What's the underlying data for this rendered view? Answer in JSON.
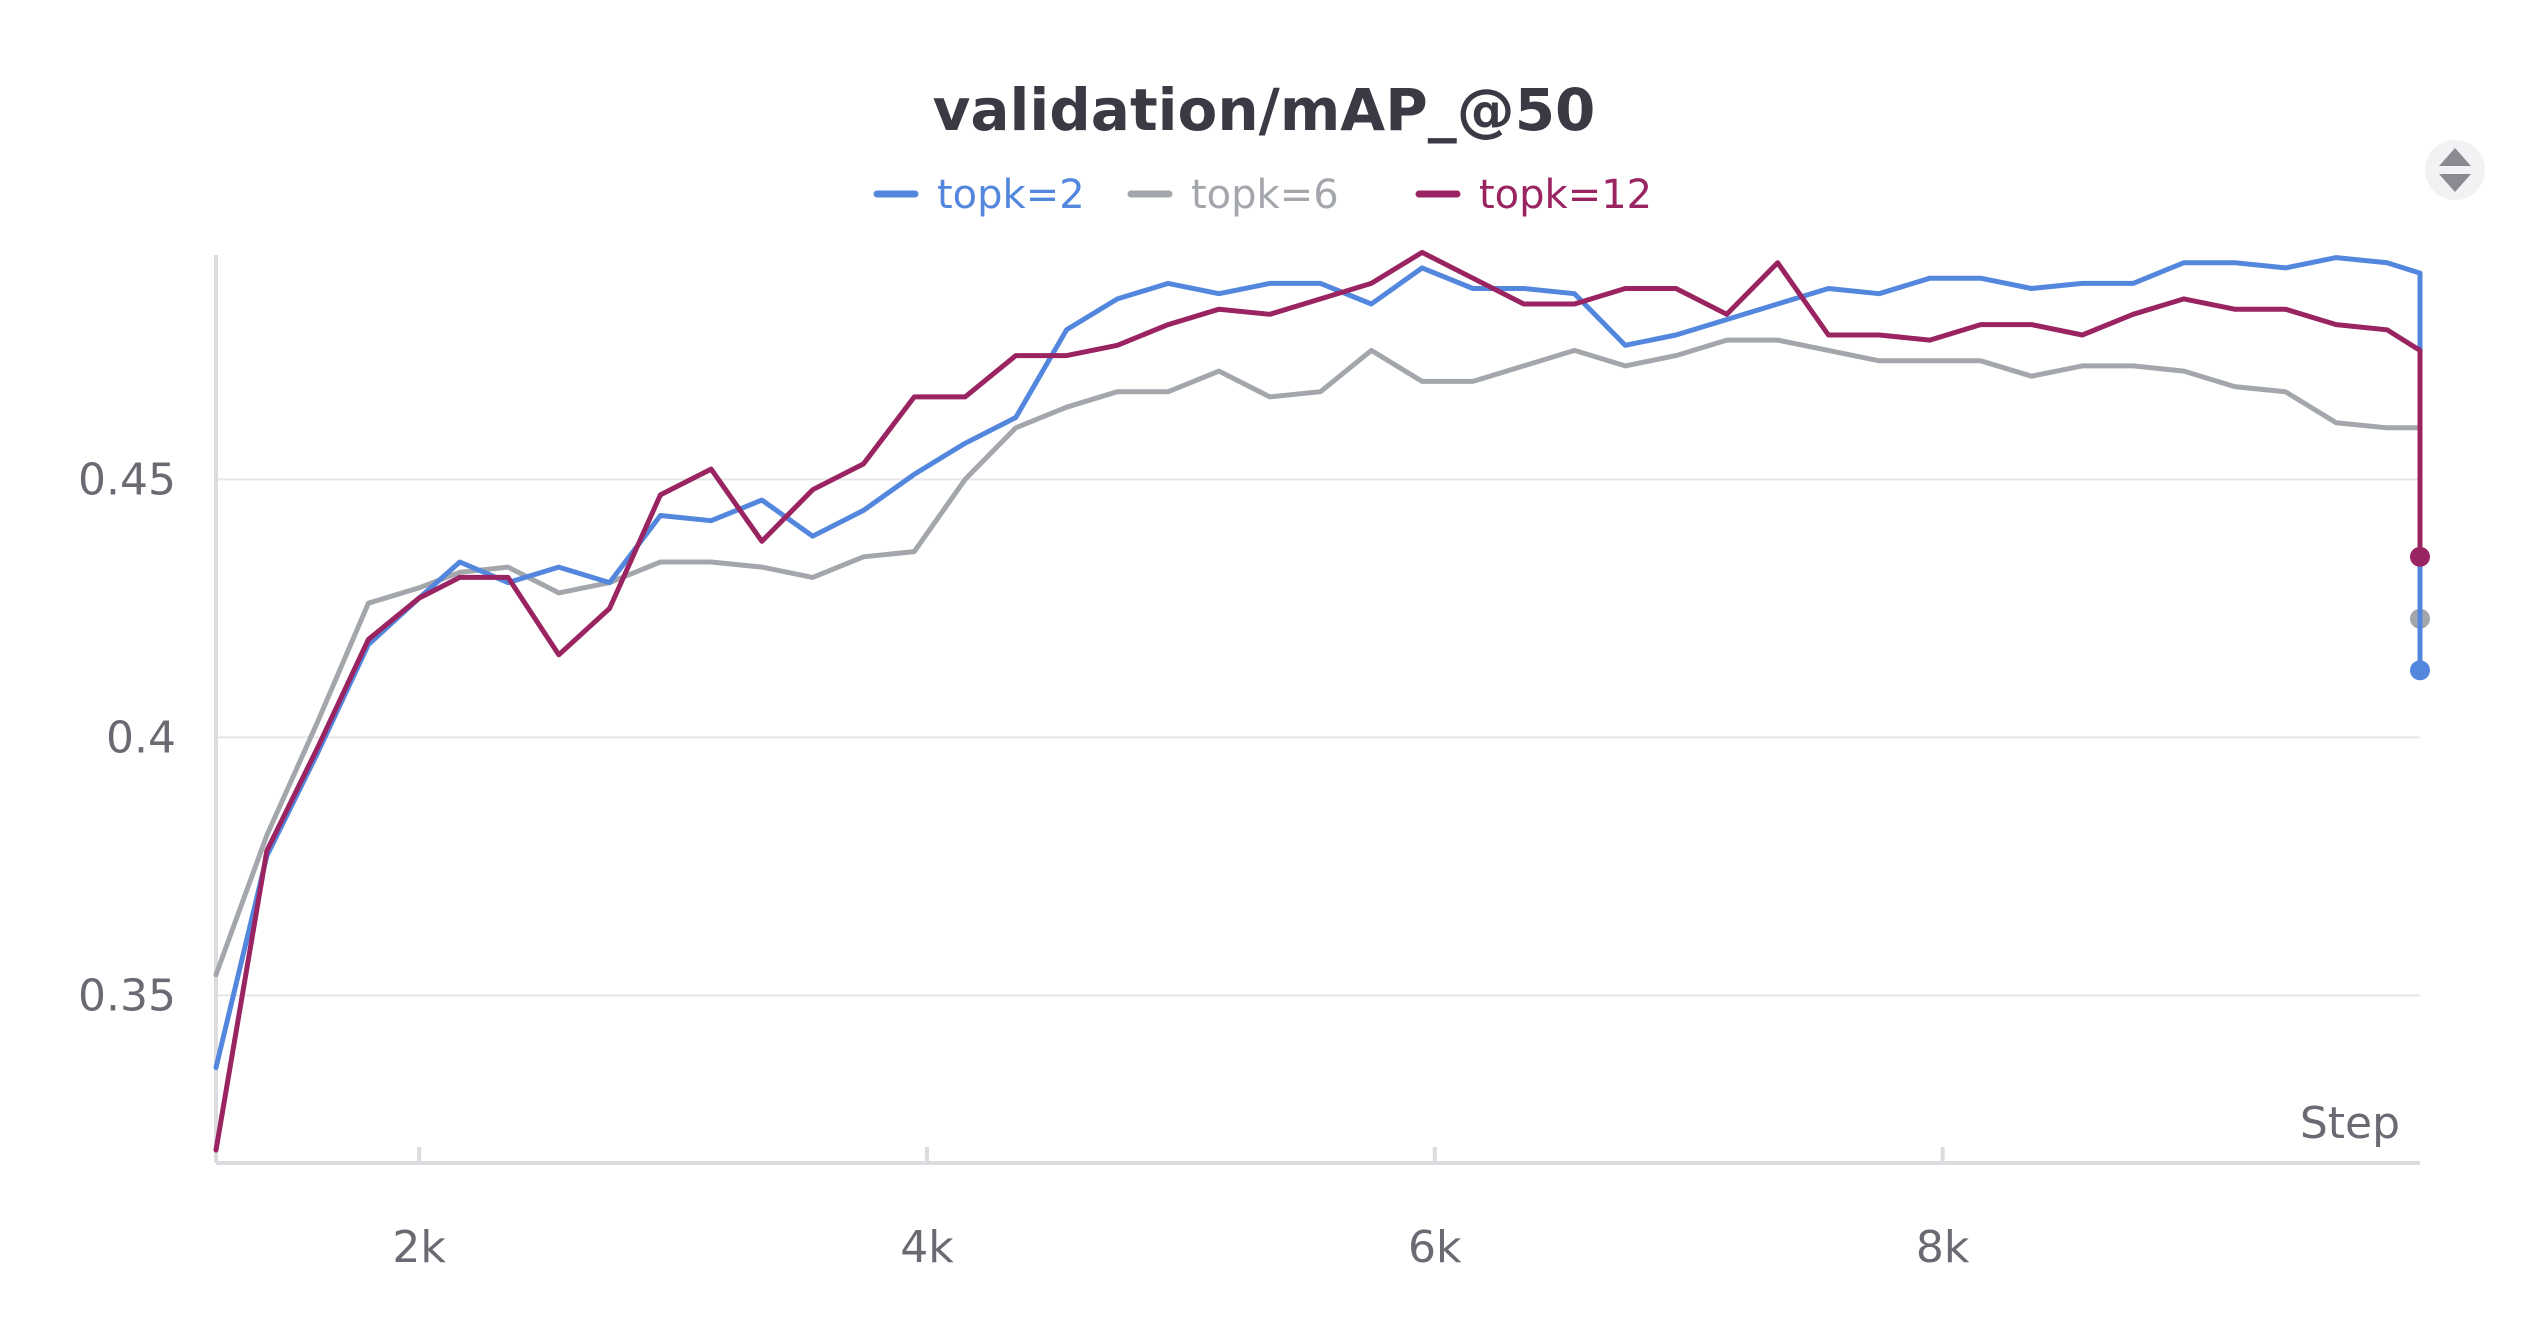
{
  "chart_data": {
    "type": "line",
    "title": "validation/mAP_@50",
    "xlabel": "Step",
    "ylabel": "",
    "xlim": [
      1200,
      9880
    ],
    "ylim": [
      0.3175,
      0.4935
    ],
    "x_ticks": [
      2000,
      4000,
      6000,
      8000
    ],
    "x_tick_labels": [
      "2k",
      "4k",
      "6k",
      "8k"
    ],
    "y_ticks": [
      0.35,
      0.4,
      0.45
    ],
    "y_tick_labels": [
      "0.35",
      "0.4",
      "0.45"
    ],
    "grid": "horizontal",
    "legend_position": "top-center",
    "series": [
      {
        "name": "topk=2",
        "color": "#5387dd",
        "x": [
          1200,
          1400,
          1600,
          1800,
          2000,
          2160,
          2350,
          2550,
          2750,
          2950,
          3150,
          3350,
          3550,
          3750,
          3950,
          4150,
          4350,
          4550,
          4750,
          4950,
          5150,
          5350,
          5550,
          5750,
          5950,
          6150,
          6350,
          6550,
          6750,
          6950,
          7150,
          7350,
          7550,
          7750,
          7950,
          8150,
          8350,
          8550,
          8750,
          8950,
          9150,
          9350,
          9550,
          9750,
          9880,
          9880
        ],
        "y": [
          0.336,
          0.377,
          0.397,
          0.418,
          0.427,
          0.434,
          0.43,
          0.433,
          0.43,
          0.443,
          0.442,
          0.446,
          0.439,
          0.444,
          0.451,
          0.457,
          0.462,
          0.479,
          0.485,
          0.488,
          0.486,
          0.488,
          0.488,
          0.484,
          0.491,
          0.487,
          0.487,
          0.486,
          0.476,
          0.478,
          0.481,
          0.484,
          0.487,
          0.486,
          0.489,
          0.489,
          0.487,
          0.488,
          0.488,
          0.492,
          0.492,
          0.491,
          0.493,
          0.492,
          0.49,
          0.413
        ]
      },
      {
        "name": "topk=6",
        "color": "#a3a7ab",
        "x": [
          1200,
          1400,
          1600,
          1800,
          2000,
          2160,
          2350,
          2550,
          2750,
          2950,
          3150,
          3350,
          3550,
          3750,
          3950,
          4150,
          4350,
          4550,
          4750,
          4950,
          5150,
          5350,
          5550,
          5750,
          5950,
          6150,
          6350,
          6550,
          6750,
          6950,
          7150,
          7350,
          7550,
          7750,
          7950,
          8150,
          8350,
          8550,
          8750,
          8950,
          9150,
          9350,
          9550,
          9750,
          9880,
          9880
        ],
        "y": [
          0.354,
          0.381,
          0.403,
          0.426,
          0.429,
          0.432,
          0.433,
          0.428,
          0.43,
          0.434,
          0.434,
          0.433,
          0.431,
          0.435,
          0.436,
          0.45,
          0.46,
          0.464,
          0.467,
          0.467,
          0.471,
          0.466,
          0.467,
          0.475,
          0.469,
          0.469,
          0.472,
          0.475,
          0.472,
          0.474,
          0.477,
          0.477,
          0.475,
          0.473,
          0.473,
          0.473,
          0.47,
          0.472,
          0.472,
          0.471,
          0.468,
          0.467,
          0.461,
          0.46,
          0.46,
          0.423
        ]
      },
      {
        "name": "topk=12",
        "color": "#9a2461",
        "x": [
          1200,
          1400,
          1600,
          1800,
          2000,
          2160,
          2350,
          2550,
          2750,
          2950,
          3150,
          3350,
          3550,
          3750,
          3950,
          4150,
          4350,
          4550,
          4750,
          4950,
          5150,
          5350,
          5550,
          5750,
          5950,
          6150,
          6350,
          6550,
          6750,
          6950,
          7150,
          7350,
          7550,
          7750,
          7950,
          8150,
          8350,
          8550,
          8750,
          8950,
          9150,
          9350,
          9550,
          9750,
          9880,
          9880
        ],
        "y": [
          0.32,
          0.378,
          0.398,
          0.419,
          0.427,
          0.431,
          0.431,
          0.416,
          0.425,
          0.447,
          0.452,
          0.438,
          0.448,
          0.453,
          0.466,
          0.466,
          0.474,
          0.474,
          0.476,
          0.48,
          0.483,
          0.482,
          0.485,
          0.488,
          0.494,
          0.489,
          0.484,
          0.484,
          0.487,
          0.487,
          0.482,
          0.492,
          0.478,
          0.478,
          0.477,
          0.48,
          0.48,
          0.478,
          0.482,
          0.485,
          0.483,
          0.483,
          0.48,
          0.479,
          0.475,
          0.435
        ]
      }
    ]
  }
}
